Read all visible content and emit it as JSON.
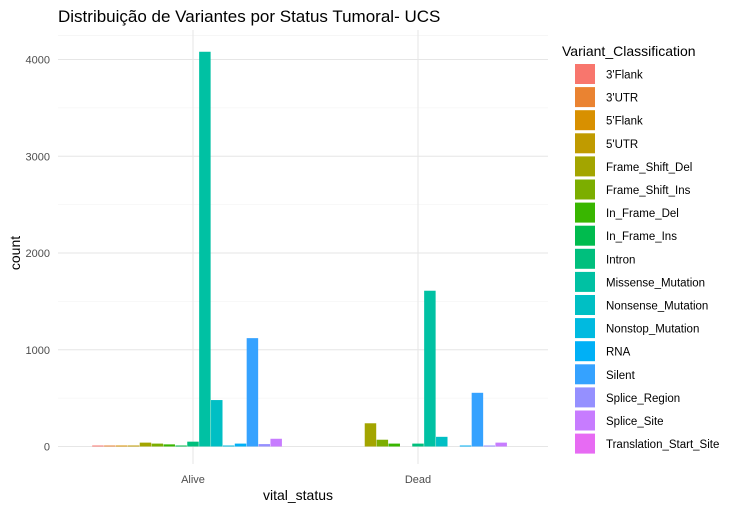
{
  "chart_data": {
    "type": "bar",
    "title": "Distribuição de Variantes por Status Tumoral- UCS",
    "xlabel": "vital_status",
    "ylabel": "count",
    "categories": [
      "Alive",
      "Dead"
    ],
    "ylim": [
      0,
      4300
    ],
    "yticks": [
      0,
      1000,
      2000,
      3000,
      4000
    ],
    "grid": true,
    "legend_title": "Variant_Classification",
    "legend_position": "right",
    "series": [
      {
        "name": "3'Flank",
        "color": "#F8766D",
        "values": [
          5,
          null
        ]
      },
      {
        "name": "3'UTR",
        "color": "#E58700",
        "values": [
          8,
          null
        ]
      },
      {
        "name": "5'Flank",
        "color": "#C99800",
        "values": [
          5,
          null
        ]
      },
      {
        "name": "5'UTR",
        "color": "#A3A500",
        "values": [
          10,
          null
        ]
      },
      {
        "name": "Frame_Shift_Del",
        "color": "#6BB100",
        "values": [
          40,
          240
        ]
      },
      {
        "name": "Frame_Shift_Ins",
        "color": "#00BA38",
        "values": [
          30,
          70
        ]
      },
      {
        "name": "In_Frame_Del",
        "color": "#00BF7D",
        "values": [
          22,
          30
        ]
      },
      {
        "name": "In_Frame_Ins",
        "color": "#00C0AF",
        "values": [
          5,
          null
        ]
      },
      {
        "name": "Intron",
        "color": "#00BCD8",
        "values": [
          50,
          30
        ]
      },
      {
        "name": "Missense_Mutation",
        "color": "#00B0F6",
        "values": [
          4080,
          1610
        ]
      },
      {
        "name": "Nonsense_Mutation",
        "color": "#619CFF",
        "values": [
          480,
          100
        ]
      },
      {
        "name": "Nonstop_Mutation",
        "color": "#B983FF",
        "values": [
          5,
          null
        ]
      },
      {
        "name": "RNA",
        "color": "#E76BF3",
        "values": [
          30,
          10
        ]
      },
      {
        "name": "Silent",
        "color": "#FD61D1",
        "values": [
          1120,
          555
        ]
      },
      {
        "name": "Splice_Region",
        "color": "#FF67A4",
        "values": [
          25,
          10
        ]
      },
      {
        "name": "Splice_Site",
        "color": "#FF6C91",
        "values": [
          80,
          40
        ]
      },
      {
        "name": "Translation_Start_Site",
        "color": "#FF6A98",
        "values": [
          null,
          null
        ]
      }
    ],
    "bar_slots": {
      "Alive": [
        "3'Flank",
        "3'UTR",
        "5'Flank",
        "5'UTR",
        "Frame_Shift_Del",
        "Frame_Shift_Ins",
        "In_Frame_Del",
        "In_Frame_Ins",
        "Intron",
        "Missense_Mutation",
        "Nonsense_Mutation",
        "Nonstop_Mutation",
        "RNA",
        "Silent",
        "Splice_Region",
        "Splice_Site"
      ],
      "Dead": [
        "Frame_Shift_Del",
        "Frame_Shift_Ins",
        "In_Frame_Del",
        "Intron",
        "Missense_Mutation",
        "Nonsense_Mutation",
        "RNA",
        "Silent",
        "Splice_Region",
        "Splice_Site"
      ]
    }
  },
  "legend_colors": {
    "3'Flank": "#F8766D",
    "3'UTR": "#EA8331",
    "5'Flank": "#D89000",
    "5'UTR": "#C09B00",
    "Frame_Shift_Del": "#A3A500",
    "Frame_Shift_Ins": "#7CAE00",
    "In_Frame_Del": "#39B600",
    "In_Frame_Ins": "#00BB4E",
    "Intron": "#00BF7D",
    "Missense_Mutation": "#00C1A3",
    "Nonsense_Mutation": "#00BFC4",
    "Nonstop_Mutation": "#00BAE0",
    "RNA": "#00B0F6",
    "Silent": "#35A2FF",
    "Splice_Region": "#9590FF",
    "Splice_Site": "#C77CFF",
    "Translation_Start_Site": "#E76BF3"
  }
}
